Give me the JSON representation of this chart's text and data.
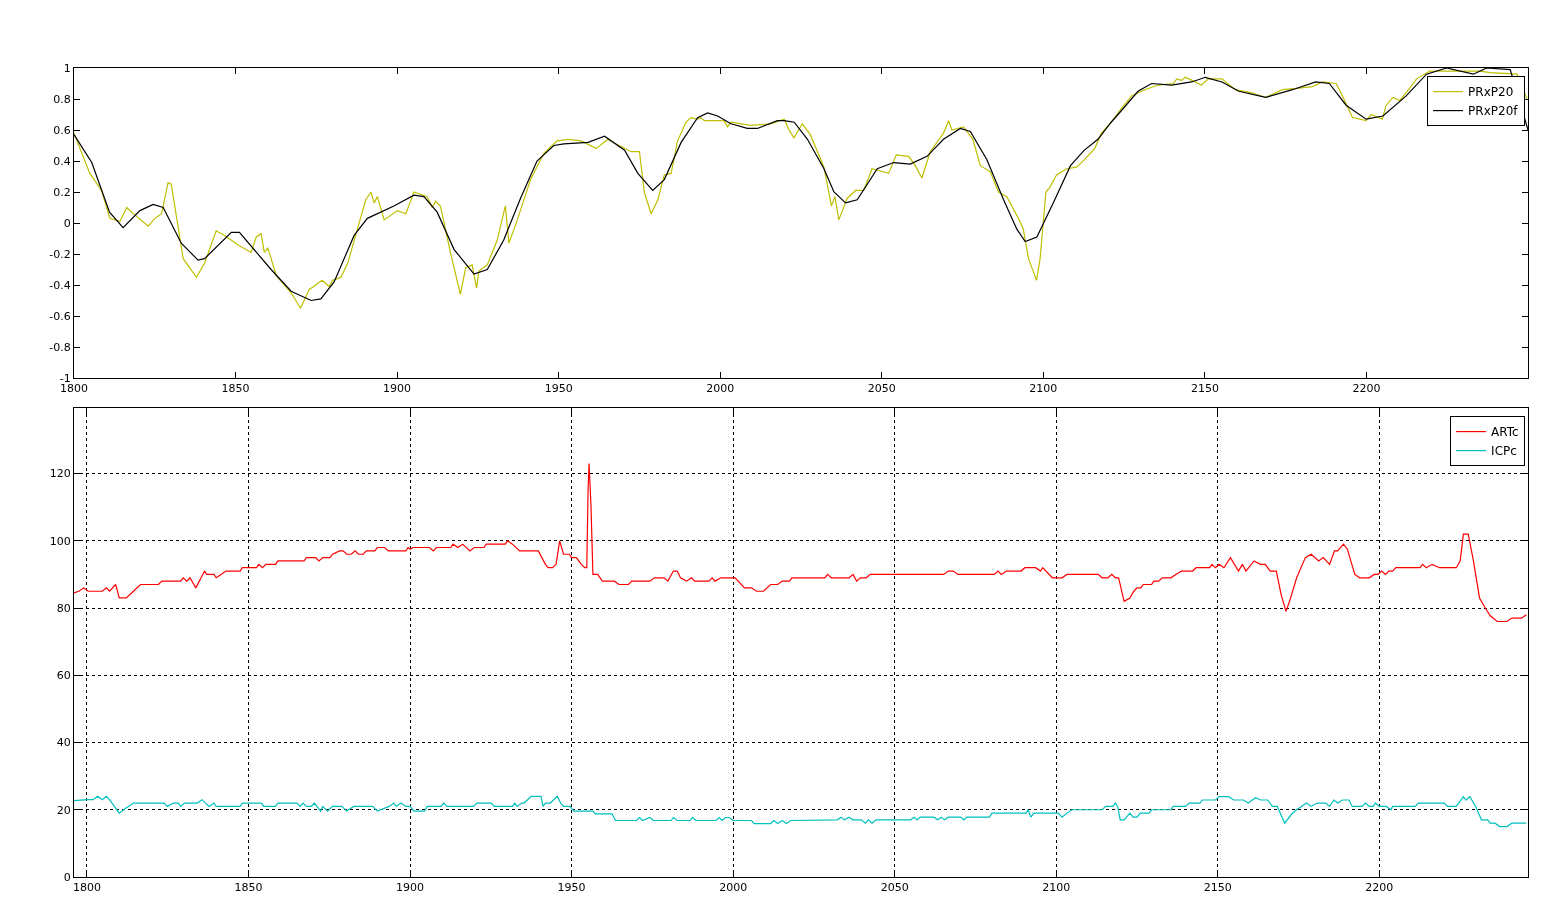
{
  "chart_data": [
    {
      "type": "line",
      "xlim": [
        1800,
        2250
      ],
      "ylim": [
        -1,
        1
      ],
      "xticks": [
        1800,
        1850,
        1900,
        1950,
        2000,
        2050,
        2100,
        2150,
        2200
      ],
      "yticks": [
        -1,
        -0.8,
        -0.6,
        -0.4,
        -0.2,
        0,
        0.2,
        0.4,
        0.6,
        0.8,
        1
      ],
      "grid": false,
      "legend": "top right",
      "series": [
        {
          "name": "PRxP20",
          "color": "#bfbf00",
          "x": [
            1800,
            1804.9,
            1808.5,
            1811.1,
            1814.2,
            1816.3,
            1818.4,
            1823,
            1825,
            1827.1,
            1829.1,
            1830.1,
            1833.8,
            1837.9,
            1840.4,
            1844,
            1846.6,
            1850.7,
            1854.8,
            1856.4,
            1857.9,
            1858.9,
            1860,
            1862.6,
            1867.2,
            1870.1,
            1872.8,
            1875.4,
            1876.8,
            1879,
            1880,
            1882.6,
            1884.7,
            1887.7,
            1890.3,
            1891.9,
            1892.9,
            1893.9,
            1896,
            1900.1,
            1902.7,
            1905.2,
            1909.3,
            1910.9,
            1911.9,
            1913.4,
            1916.5,
            1919.6,
            1921.2,
            1923.2,
            1924.6,
            1925.3,
            1927.9,
            1931,
            1933.5,
            1934.6,
            1937.2,
            1941.3,
            1945.4,
            1949.5,
            1952.9,
            1957,
            1961.6,
            1965.2,
            1967.8,
            1972.4,
            1975,
            1976.5,
            1978.6,
            1980.7,
            1982.7,
            1984.8,
            1986.8,
            1989.4,
            1990.9,
            1993,
            1994,
            1995.1,
            2001.2,
            2002.3,
            2003.3,
            2009.5,
            2015.6,
            2019.8,
            2021.3,
            2022.8,
            2025.4,
            2027.9,
            2032.1,
            2034.4,
            2035.5,
            2036.7,
            2039.3,
            2041.9,
            2044.4,
            2047,
            2052.1,
            2054.5,
            2058.3,
            2060.4,
            2062.4,
            2065,
            2069.1,
            2070.7,
            2071.7,
            2075.3,
            2078.2,
            2080.5,
            2083.6,
            2086.1,
            2088.7,
            2092.3,
            2093.8,
            2095.4,
            2097.9,
            2099,
            2100.8,
            2102,
            2104.1,
            2107.2,
            2110.3,
            2112.8,
            2115.9,
            2118,
            2121,
            2124.2,
            2127.3,
            2131.4,
            2135.6,
            2140.2,
            2141.3,
            2142.8,
            2143.9,
            2146,
            2148.9,
            2151.1,
            2155.3,
            2159.4,
            2164.6,
            2168.8,
            2174,
            2179.1,
            2183.3,
            2186.4,
            2190.6,
            2192.1,
            2195.7,
            2199.9,
            2201.5,
            2204.9,
            2206.1,
            2208.2,
            2210.3,
            2213.4,
            2215.5,
            2219.6,
            2229,
            2235.2,
            2238.3,
            2246.6,
            2249.7
          ],
          "values": [
            0.58,
            0.32,
            0.21,
            0.03,
            0.01,
            0.1,
            0.06,
            -0.02,
            0.03,
            0.06,
            0.26,
            0.25,
            -0.23,
            -0.35,
            -0.26,
            -0.05,
            -0.08,
            -0.14,
            -0.19,
            -0.09,
            -0.07,
            -0.19,
            -0.16,
            -0.34,
            -0.45,
            -0.55,
            -0.43,
            -0.39,
            -0.37,
            -0.41,
            -0.37,
            -0.35,
            -0.26,
            -0.04,
            0.15,
            0.2,
            0.13,
            0.17,
            0.02,
            0.08,
            0.06,
            0.2,
            0.17,
            0.1,
            0.14,
            0.11,
            -0.19,
            -0.46,
            -0.29,
            -0.27,
            -0.42,
            -0.31,
            -0.27,
            -0.11,
            0.11,
            -0.13,
            0.02,
            0.28,
            0.45,
            0.53,
            0.54,
            0.53,
            0.48,
            0.54,
            0.51,
            0.46,
            0.46,
            0.2,
            0.06,
            0.15,
            0.31,
            0.32,
            0.53,
            0.65,
            0.68,
            0.67,
            0.68,
            0.66,
            0.66,
            0.62,
            0.65,
            0.63,
            0.64,
            0.67,
            0.6,
            0.55,
            0.64,
            0.57,
            0.36,
            0.11,
            0.17,
            0.02,
            0.16,
            0.21,
            0.21,
            0.35,
            0.32,
            0.44,
            0.43,
            0.37,
            0.29,
            0.46,
            0.58,
            0.66,
            0.6,
            0.62,
            0.54,
            0.37,
            0.33,
            0.2,
            0.17,
            0.03,
            -0.04,
            -0.23,
            -0.37,
            -0.23,
            0.2,
            0.23,
            0.31,
            0.35,
            0.36,
            0.41,
            0.48,
            0.58,
            0.65,
            0.74,
            0.82,
            0.86,
            0.89,
            0.9,
            0.93,
            0.92,
            0.94,
            0.92,
            0.89,
            0.93,
            0.93,
            0.86,
            0.84,
            0.81,
            0.86,
            0.87,
            0.88,
            0.91,
            0.9,
            0.84,
            0.68,
            0.66,
            0.7,
            0.67,
            0.76,
            0.81,
            0.79,
            0.87,
            0.93,
            0.98,
            0.98,
            0.98,
            0.97,
            0.96,
            0.8
          ]
        },
        {
          "name": "PRxP20f",
          "color": "#000000",
          "x": [
            1800,
            1805.5,
            1811,
            1815.2,
            1820.4,
            1824.5,
            1827.6,
            1833.2,
            1838.4,
            1840.4,
            1848.7,
            1851.2,
            1861,
            1867.2,
            1873.4,
            1876.4,
            1880.5,
            1886.7,
            1890.8,
            1899,
            1905.2,
            1908.3,
            1912.4,
            1917.6,
            1923.8,
            1927.9,
            1933,
            1938.2,
            1943.3,
            1948.5,
            1951.6,
            1959.1,
            1964.2,
            1970.4,
            1974.5,
            1979.1,
            1982.7,
            1987.9,
            1993,
            1996.1,
            1999.2,
            2003.3,
            2008.4,
            2011.5,
            2017.7,
            2019.8,
            2022.9,
            2027,
            2032.1,
            2035.2,
            2038.8,
            2042.4,
            2048.6,
            2053.7,
            2058.8,
            2064,
            2069.1,
            2074.3,
            2077.4,
            2082.5,
            2087.7,
            2091.8,
            2094.4,
            2098,
            2103.1,
            2108.4,
            2112.7,
            2116.9,
            2121,
            2125.2,
            2129.3,
            2133.5,
            2139.7,
            2145.9,
            2150.1,
            2155.3,
            2160.5,
            2168.8,
            2177.1,
            2184.3,
            2188.5,
            2193.7,
            2199.9,
            2205.1,
            2212.3,
            2218.6,
            2224.8,
            2233.1,
            2237.2,
            2244.5,
            2250
          ],
          "values": [
            0.57,
            0.39,
            0.07,
            -0.03,
            0.08,
            0.12,
            0.1,
            -0.13,
            -0.24,
            -0.23,
            -0.06,
            -0.06,
            -0.3,
            -0.44,
            -0.5,
            -0.49,
            -0.38,
            -0.08,
            0.03,
            0.11,
            0.18,
            0.17,
            0.07,
            -0.17,
            -0.33,
            -0.3,
            -0.11,
            0.16,
            0.4,
            0.5,
            0.51,
            0.52,
            0.56,
            0.47,
            0.32,
            0.21,
            0.28,
            0.52,
            0.68,
            0.71,
            0.69,
            0.64,
            0.61,
            0.61,
            0.66,
            0.66,
            0.65,
            0.54,
            0.35,
            0.2,
            0.13,
            0.15,
            0.35,
            0.39,
            0.38,
            0.43,
            0.54,
            0.61,
            0.59,
            0.41,
            0.15,
            -0.04,
            -0.12,
            -0.09,
            0.13,
            0.37,
            0.47,
            0.54,
            0.65,
            0.75,
            0.85,
            0.9,
            0.89,
            0.91,
            0.94,
            0.91,
            0.85,
            0.81,
            0.86,
            0.91,
            0.9,
            0.76,
            0.67,
            0.69,
            0.82,
            0.96,
            1.0,
            0.96,
            1.0,
            0.99,
            0.6
          ]
        }
      ]
    },
    {
      "type": "line",
      "xlim": [
        1796,
        2246
      ],
      "ylim": [
        0,
        139.5
      ],
      "xticks": [
        1800,
        1850,
        1900,
        1950,
        2000,
        2050,
        2100,
        2150,
        2200
      ],
      "yticks": [
        0,
        20,
        40,
        60,
        80,
        100,
        120
      ],
      "grid": true,
      "legend": "top right",
      "series": [
        {
          "name": "ARTc",
          "color": "#ff0000",
          "x": [
            1796,
            1797.5,
            1799,
            1800.4,
            1804.8,
            1806,
            1807,
            1808.9,
            1810,
            1812.2,
            1814.4,
            1816.6,
            1822.1,
            1823.2,
            1829,
            1829.8,
            1830.9,
            1831.9,
            1833.7,
            1836.4,
            1837.1,
            1839.3,
            1840,
            1841.5,
            1843,
            1847.4,
            1848.1,
            1852.5,
            1853.2,
            1854.3,
            1855.4,
            1858.4,
            1859.1,
            1867.2,
            1867.9,
            1870.8,
            1871.8,
            1873,
            1875.2,
            1876,
            1878.2,
            1879.3,
            1880.4,
            1881.8,
            1883,
            1884,
            1885.5,
            1886.5,
            1889.1,
            1889.9,
            1892.1,
            1893.3,
            1898.7,
            1899.4,
            1900.1,
            1900.9,
            1906,
            1907.2,
            1908.2,
            1912.6,
            1913.3,
            1914.8,
            1916.3,
            1918.5,
            1919.9,
            1922.9,
            1923.6,
            1929.5,
            1930.2,
            1931.7,
            1933.9,
            1939.7,
            1940.8,
            1941.9,
            1942.7,
            1944.1,
            1945.2,
            1946.3,
            1947.5,
            1949.3,
            1950,
            1951.5,
            1953,
            1954.1,
            1954.7,
            1955.1,
            1955.4,
            1956,
            1956.6,
            1958.1,
            1959.5,
            1963.2,
            1964.7,
            1967.6,
            1968.6,
            1974.2,
            1975.7,
            1978.6,
            1979.8,
            1981.5,
            1982.7,
            1983.7,
            1985.6,
            1987.1,
            1988.1,
            1992.5,
            1993.5,
            1994.4,
            1996.2,
            2000.6,
            2003.5,
            2005.7,
            2007.2,
            2009.4,
            2011.6,
            2013.8,
            2015.2,
            2017.4,
            2018.2,
            2028.4,
            2029.2,
            2030.4,
            2035.9,
            2037.1,
            2038.2,
            2039.4,
            2041.2,
            2042.4,
            2065.1,
            2066.6,
            2068.1,
            2069.6,
            2080.8,
            2082,
            2083,
            2084.6,
            2089.1,
            2090.3,
            2093.6,
            2095.1,
            2095.8,
            2098.8,
            2101.8,
            2103.3,
            2113,
            2114.2,
            2116,
            2117.2,
            2118.3,
            2119.3,
            2121,
            2122.8,
            2124,
            2125,
            2126.2,
            2126.9,
            2129.5,
            2130.2,
            2131.7,
            2132.8,
            2135.5,
            2137,
            2138.8,
            2142.2,
            2143.3,
            2147.5,
            2148.2,
            2149.3,
            2150.4,
            2151.9,
            2153.9,
            2156.4,
            2157.6,
            2158.7,
            2161.2,
            2163.2,
            2164.7,
            2166.2,
            2168.1,
            2169.6,
            2171.1,
            2172.2,
            2174.4,
            2177.1,
            2178.9,
            2181.2,
            2182.6,
            2184.6,
            2186.1,
            2187.1,
            2188.9,
            2190.1,
            2192.4,
            2193.9,
            2196.9,
            2198.4,
            2199.6,
            2200.7,
            2201.9,
            2202.9,
            2204.1,
            2205.1,
            2212.6,
            2213.4,
            2214.5,
            2216.3,
            2218.6,
            2223.8,
            2225,
            2226,
            2227.5,
            2229,
            2231,
            2232.8,
            2234.3,
            2236.5,
            2239.5,
            2241,
            2244,
            2245.5
          ],
          "values": [
            84.5,
            85,
            86,
            85,
            85,
            86,
            85,
            87,
            83,
            83,
            85,
            87,
            87,
            88,
            88,
            89,
            88,
            89,
            86,
            91,
            90,
            90,
            89,
            90,
            91,
            91,
            92,
            92,
            93,
            92,
            93,
            93,
            94,
            94,
            95,
            95,
            94,
            95,
            95,
            96,
            97,
            97,
            96,
            96,
            97,
            96,
            96,
            97,
            97,
            98,
            98,
            97,
            97,
            98,
            97.5,
            98,
            98,
            97,
            98,
            98,
            99,
            98,
            99,
            97,
            98,
            98,
            99,
            99,
            100,
            99,
            97,
            97,
            95,
            93,
            92,
            92,
            93,
            100,
            96,
            96,
            95,
            95,
            93,
            92,
            92,
            115,
            123,
            110.5,
            90,
            90,
            88,
            88,
            87,
            87,
            88,
            88,
            89,
            89,
            88,
            91,
            91,
            89,
            88,
            89,
            88,
            88,
            89,
            88,
            89,
            89,
            86,
            86,
            85,
            85,
            87,
            87,
            88,
            88,
            89,
            89,
            90,
            89,
            89,
            90,
            88,
            89,
            89,
            90,
            90,
            91,
            91,
            90,
            90,
            91,
            90,
            91,
            91,
            92,
            92,
            91,
            92,
            89,
            89,
            90,
            90,
            89,
            89,
            90,
            89,
            89,
            82,
            83,
            85,
            86,
            86,
            87,
            87,
            88,
            88,
            89,
            89,
            90,
            91,
            91,
            92,
            92,
            93,
            92,
            93,
            92,
            95,
            91,
            93,
            91,
            94,
            93,
            93,
            91,
            91,
            84,
            79,
            82,
            89,
            95,
            96,
            94,
            95,
            93,
            97,
            97,
            99,
            97.5,
            90,
            89,
            89,
            90,
            90,
            91,
            90,
            91,
            91,
            92,
            92,
            93,
            92,
            93,
            92,
            92,
            94,
            102,
            102,
            94.6,
            83,
            80,
            77.7,
            76,
            76,
            77,
            77,
            78
          ]
        },
        {
          "name": "ICPc",
          "color": "#00bfbf",
          "x": [
            1796,
            1800.4,
            1801.9,
            1803.3,
            1804.8,
            1806,
            1807,
            1810,
            1812.2,
            1812.9,
            1814.4,
            1823.9,
            1824.9,
            1826.8,
            1828.3,
            1829,
            1830.2,
            1834.2,
            1835.6,
            1837.8,
            1839.3,
            1840,
            1847.4,
            1848.1,
            1854,
            1854.7,
            1858.4,
            1859.1,
            1865,
            1866,
            1866.9,
            1867.9,
            1869.4,
            1870.4,
            1872.3,
            1873,
            1874.5,
            1876,
            1878.9,
            1880.4,
            1882.6,
            1888.4,
            1889.9,
            1893.5,
            1895,
            1895.7,
            1897.2,
            1898.7,
            1900.1,
            1901.2,
            1904.5,
            1905.3,
            1909.7,
            1910.4,
            1911.4,
            1919.6,
            1920.7,
            1925.1,
            1926.1,
            1931.7,
            1932.4,
            1933.1,
            1934.6,
            1935.3,
            1937.5,
            1940.5,
            1941.2,
            1941.9,
            1943.4,
            1945.6,
            1946.6,
            1947.5,
            1949.5,
            1950.7,
            1956.6,
            1957.3,
            1962.5,
            1963.6,
            1970.1,
            1971,
            1972,
            1974.2,
            1975.4,
            1980.8,
            1981.5,
            1982.7,
            1986.7,
            1987.4,
            1988.5,
            1994.7,
            1995.7,
            1996.6,
            1997.6,
            1998.8,
            1999.9,
            2005.7,
            2006.5,
            2011.6,
            2012.6,
            2013.8,
            2015.2,
            2016.4,
            2017.9,
            2032.2,
            2033.4,
            2034.4,
            2035.9,
            2037,
            2039.7,
            2040.9,
            2041.9,
            2043,
            2044.2,
            2054.9,
            2056.1,
            2056.9,
            2057.9,
            2062.1,
            2063.3,
            2064.4,
            2065.4,
            2066.6,
            2070.4,
            2071.4,
            2072.3,
            2079.3,
            2080.1,
            2090.6,
            2091.3,
            2092.1,
            2093.1,
            2100.6,
            2101.8,
            2103.3,
            2104.8,
            2114.2,
            2115.3,
            2117.5,
            2118.3,
            2119,
            2119.8,
            2121,
            2122.8,
            2123.8,
            2125,
            2126,
            2128.7,
            2129.5,
            2135.5,
            2136.2,
            2140,
            2141.2,
            2144.5,
            2145.2,
            2149.3,
            2150.4,
            2153.4,
            2154.9,
            2157.9,
            2159.4,
            2161.7,
            2163.2,
            2165.4,
            2166.9,
            2168.4,
            2170.7,
            2172.9,
            2174.4,
            2175.9,
            2177.4,
            2178.9,
            2180.7,
            2183.4,
            2184.6,
            2185.9,
            2187.1,
            2188.6,
            2190.6,
            2191.6,
            2194.6,
            2195.7,
            2196.9,
            2198.1,
            2198.8,
            2199.9,
            2202.1,
            2203.6,
            2204.1,
            2211.1,
            2212.1,
            2220.1,
            2221.1,
            2223.8,
            2226,
            2226.8,
            2228,
            2229.8,
            2231.6,
            2233.5,
            2234.3,
            2235.8,
            2237.3,
            2239.5,
            2241,
            2245.5
          ],
          "values": [
            22.7,
            23,
            23,
            24,
            23,
            24,
            23,
            19,
            20.6,
            21,
            22,
            22,
            21,
            22,
            22,
            21,
            22,
            22,
            23,
            21,
            22,
            21,
            21,
            22,
            22,
            21,
            21,
            22,
            22,
            21,
            22,
            21,
            21,
            22,
            19.6,
            21,
            19.6,
            21,
            21,
            19.6,
            21,
            21,
            19.6,
            21,
            22,
            21,
            22,
            21,
            21,
            19.6,
            19.6,
            21,
            21,
            22,
            21,
            21,
            22,
            22,
            21,
            21,
            22,
            21,
            22,
            22,
            24,
            24,
            21,
            22,
            22,
            24,
            22,
            21,
            21,
            19.6,
            19.6,
            18.8,
            18.8,
            16.8,
            16.8,
            17.7,
            16.8,
            17.7,
            16.8,
            16.8,
            17.7,
            16.8,
            16.8,
            17.7,
            16.8,
            16.8,
            17.7,
            16.8,
            17.7,
            17.7,
            16.8,
            16.8,
            15.9,
            15.9,
            16.8,
            15.9,
            16.8,
            15.9,
            16.8,
            17,
            17.8,
            17,
            17.8,
            17,
            17,
            16,
            17,
            16,
            17,
            17,
            17.8,
            17,
            17.8,
            17.8,
            17,
            17.8,
            17,
            17.8,
            17.8,
            17,
            17.8,
            17.8,
            19,
            19,
            20,
            17.8,
            19,
            19,
            17.8,
            19,
            20,
            20,
            21,
            21,
            22,
            21,
            17,
            17,
            19,
            17.8,
            17.8,
            19,
            19,
            20,
            20,
            21,
            21,
            22,
            22,
            22.9,
            22.9,
            23.9,
            23.9,
            22.9,
            22.9,
            22,
            23.6,
            22.9,
            22.9,
            21,
            21,
            16,
            18.8,
            20,
            21,
            22,
            21,
            22,
            22,
            21,
            22.9,
            22,
            22.9,
            22.9,
            21,
            21,
            22,
            21,
            21,
            22,
            21,
            21,
            20,
            21,
            21,
            22,
            22,
            21,
            21,
            23.9,
            22.9,
            23.9,
            21,
            17,
            17,
            16,
            16,
            15,
            15,
            16,
            16
          ]
        }
      ]
    }
  ]
}
